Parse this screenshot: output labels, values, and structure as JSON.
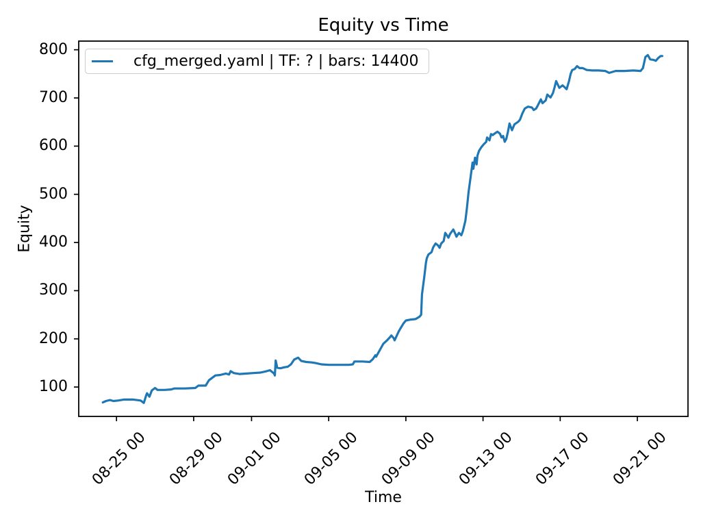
{
  "window": {
    "background": "#ffffff"
  },
  "chart_data": {
    "type": "line",
    "title": "Equity vs Time",
    "xlabel": "Time",
    "ylabel": "Equity",
    "grid": false,
    "legend_position": "upper-left",
    "legend": [
      {
        "label": "cfg_merged.yaml | TF: ? | bars: 14400",
        "color": "#1f77b4"
      }
    ],
    "x_tick_labels": [
      "08-25 00",
      "08-29 00",
      "09-01 00",
      "09-05 00",
      "09-09 00",
      "09-13 00",
      "09-17 00",
      "09-21 00"
    ],
    "y_ticks": [
      100,
      200,
      300,
      400,
      500,
      600,
      700,
      800
    ],
    "ylim": [
      39,
      818
    ],
    "xlim": [
      "08-23 01",
      "09-23 15"
    ],
    "series": [
      {
        "name": "cfg_merged.yaml | TF: ? | bars: 14400",
        "color": "#1f77b4",
        "points": [
          [
            "08-24 07",
            68
          ],
          [
            "08-24 11",
            71
          ],
          [
            "08-24 16",
            73
          ],
          [
            "08-24 20",
            71
          ],
          [
            "08-25 02",
            72
          ],
          [
            "08-25 09",
            74
          ],
          [
            "08-25 21",
            74
          ],
          [
            "08-26 06",
            72
          ],
          [
            "08-26 10",
            67
          ],
          [
            "08-26 13",
            83
          ],
          [
            "08-26 14",
            87
          ],
          [
            "08-26 17",
            80
          ],
          [
            "08-26 20",
            93
          ],
          [
            "08-27 00",
            98
          ],
          [
            "08-27 03",
            94
          ],
          [
            "08-27 12",
            94
          ],
          [
            "08-27 20",
            95
          ],
          [
            "08-28 00",
            97
          ],
          [
            "08-28 13",
            97
          ],
          [
            "08-29 02",
            98
          ],
          [
            "08-29 06",
            103
          ],
          [
            "08-29 15",
            103
          ],
          [
            "08-29 19",
            114
          ],
          [
            "08-29 23",
            119
          ],
          [
            "08-30 03",
            124
          ],
          [
            "08-30 09",
            125
          ],
          [
            "08-30 16",
            128
          ],
          [
            "08-30 20",
            126
          ],
          [
            "08-30 22",
            133
          ],
          [
            "08-31 02",
            129
          ],
          [
            "08-31 09",
            127
          ],
          [
            "08-31 18",
            128
          ],
          [
            "09-01 02",
            129
          ],
          [
            "09-01 11",
            130
          ],
          [
            "09-01 19",
            133
          ],
          [
            "09-01 23",
            135
          ],
          [
            "09-02 04",
            128
          ],
          [
            "09-02 05",
            124
          ],
          [
            "09-02 06",
            155
          ],
          [
            "09-02 08",
            140
          ],
          [
            "09-02 12",
            139
          ],
          [
            "09-02 17",
            141
          ],
          [
            "09-02 21",
            142
          ],
          [
            "09-03 01",
            147
          ],
          [
            "09-03 05",
            157
          ],
          [
            "09-03 10",
            161
          ],
          [
            "09-03 14",
            154
          ],
          [
            "09-03 20",
            152
          ],
          [
            "09-04 03",
            151
          ],
          [
            "09-04 07",
            150
          ],
          [
            "09-04 15",
            147
          ],
          [
            "09-05 00",
            146
          ],
          [
            "09-05 13",
            146
          ],
          [
            "09-06 01",
            146
          ],
          [
            "09-06 06",
            147
          ],
          [
            "09-06 08",
            153
          ],
          [
            "09-06 18",
            153
          ],
          [
            "09-07 03",
            152
          ],
          [
            "09-07 07",
            158
          ],
          [
            "09-07 10",
            166
          ],
          [
            "09-07 11",
            163
          ],
          [
            "09-07 14",
            172
          ],
          [
            "09-07 17",
            181
          ],
          [
            "09-07 20",
            190
          ],
          [
            "09-08 00",
            196
          ],
          [
            "09-08 04",
            203
          ],
          [
            "09-08 06",
            207
          ],
          [
            "09-08 09",
            201
          ],
          [
            "09-08 10",
            197
          ],
          [
            "09-08 15",
            215
          ],
          [
            "09-08 17",
            221
          ],
          [
            "09-08 21",
            232
          ],
          [
            "09-09 00",
            238
          ],
          [
            "09-09 06",
            240
          ],
          [
            "09-09 12",
            241
          ],
          [
            "09-09 17",
            246
          ],
          [
            "09-09 19",
            250
          ],
          [
            "09-09 20",
            292
          ],
          [
            "09-09 23",
            330
          ],
          [
            "09-10 01",
            358
          ],
          [
            "09-10 02",
            367
          ],
          [
            "09-10 04",
            375
          ],
          [
            "09-10 08",
            380
          ],
          [
            "09-10 10",
            390
          ],
          [
            "09-10 13",
            398
          ],
          [
            "09-10 16",
            394
          ],
          [
            "09-10 18",
            389
          ],
          [
            "09-10 20",
            398
          ],
          [
            "09-10 23",
            403
          ],
          [
            "09-11 01",
            420
          ],
          [
            "09-11 03",
            415
          ],
          [
            "09-11 05",
            410
          ],
          [
            "09-11 07",
            418
          ],
          [
            "09-11 11",
            427
          ],
          [
            "09-11 13",
            420
          ],
          [
            "09-11 15",
            412
          ],
          [
            "09-11 18",
            420
          ],
          [
            "09-11 21",
            415
          ],
          [
            "09-11 23",
            424
          ],
          [
            "09-12 02",
            445
          ],
          [
            "09-12 04",
            472
          ],
          [
            "09-12 06",
            505
          ],
          [
            "09-12 08",
            529
          ],
          [
            "09-12 11",
            566
          ],
          [
            "09-12 12",
            553
          ],
          [
            "09-12 14",
            576
          ],
          [
            "09-12 16",
            562
          ],
          [
            "09-12 17",
            580
          ],
          [
            "09-12 19",
            590
          ],
          [
            "09-12 22",
            598
          ],
          [
            "09-13 01",
            604
          ],
          [
            "09-13 04",
            609
          ],
          [
            "09-13 05",
            618
          ],
          [
            "09-13 08",
            612
          ],
          [
            "09-13 10",
            625
          ],
          [
            "09-13 12",
            623
          ],
          [
            "09-13 16",
            628
          ],
          [
            "09-13 18",
            630
          ],
          [
            "09-13 21",
            626
          ],
          [
            "09-13 23",
            618
          ],
          [
            "09-14 01",
            621
          ],
          [
            "09-14 03",
            609
          ],
          [
            "09-14 05",
            615
          ],
          [
            "09-14 07",
            630
          ],
          [
            "09-14 09",
            647
          ],
          [
            "09-14 12",
            633
          ],
          [
            "09-14 15",
            645
          ],
          [
            "09-14 20",
            651
          ],
          [
            "09-14 22",
            655
          ],
          [
            "09-15 01",
            668
          ],
          [
            "09-15 04",
            678
          ],
          [
            "09-15 08",
            682
          ],
          [
            "09-15 13",
            680
          ],
          [
            "09-15 15",
            675
          ],
          [
            "09-15 18",
            678
          ],
          [
            "09-15 20",
            684
          ],
          [
            "09-16 00",
            697
          ],
          [
            "09-16 02",
            689
          ],
          [
            "09-16 06",
            695
          ],
          [
            "09-16 08",
            707
          ],
          [
            "09-16 12",
            701
          ],
          [
            "09-16 15",
            710
          ],
          [
            "09-16 17",
            722
          ],
          [
            "09-16 19",
            735
          ],
          [
            "09-16 22",
            724
          ],
          [
            "09-16 23",
            721
          ],
          [
            "09-17 03",
            726
          ],
          [
            "09-17 05",
            723
          ],
          [
            "09-17 08",
            718
          ],
          [
            "09-17 11",
            735
          ],
          [
            "09-17 13",
            750
          ],
          [
            "09-17 15",
            758
          ],
          [
            "09-17 18",
            760
          ],
          [
            "09-17 21",
            766
          ],
          [
            "09-18 00",
            762
          ],
          [
            "09-18 04",
            762
          ],
          [
            "09-18 09",
            758
          ],
          [
            "09-18 16",
            757
          ],
          [
            "09-19 00",
            757
          ],
          [
            "09-19 08",
            756
          ],
          [
            "09-19 13",
            752
          ],
          [
            "09-19 21",
            756
          ],
          [
            "09-20 08",
            756
          ],
          [
            "09-20 19",
            757
          ],
          [
            "09-21 04",
            756
          ],
          [
            "09-21 07",
            762
          ],
          [
            "09-21 10",
            785
          ],
          [
            "09-21 13",
            789
          ],
          [
            "09-21 16",
            780
          ],
          [
            "09-21 20",
            779
          ],
          [
            "09-21 23",
            777
          ],
          [
            "09-22 02",
            783
          ],
          [
            "09-22 05",
            787
          ],
          [
            "09-22 07",
            787
          ]
        ]
      }
    ]
  }
}
